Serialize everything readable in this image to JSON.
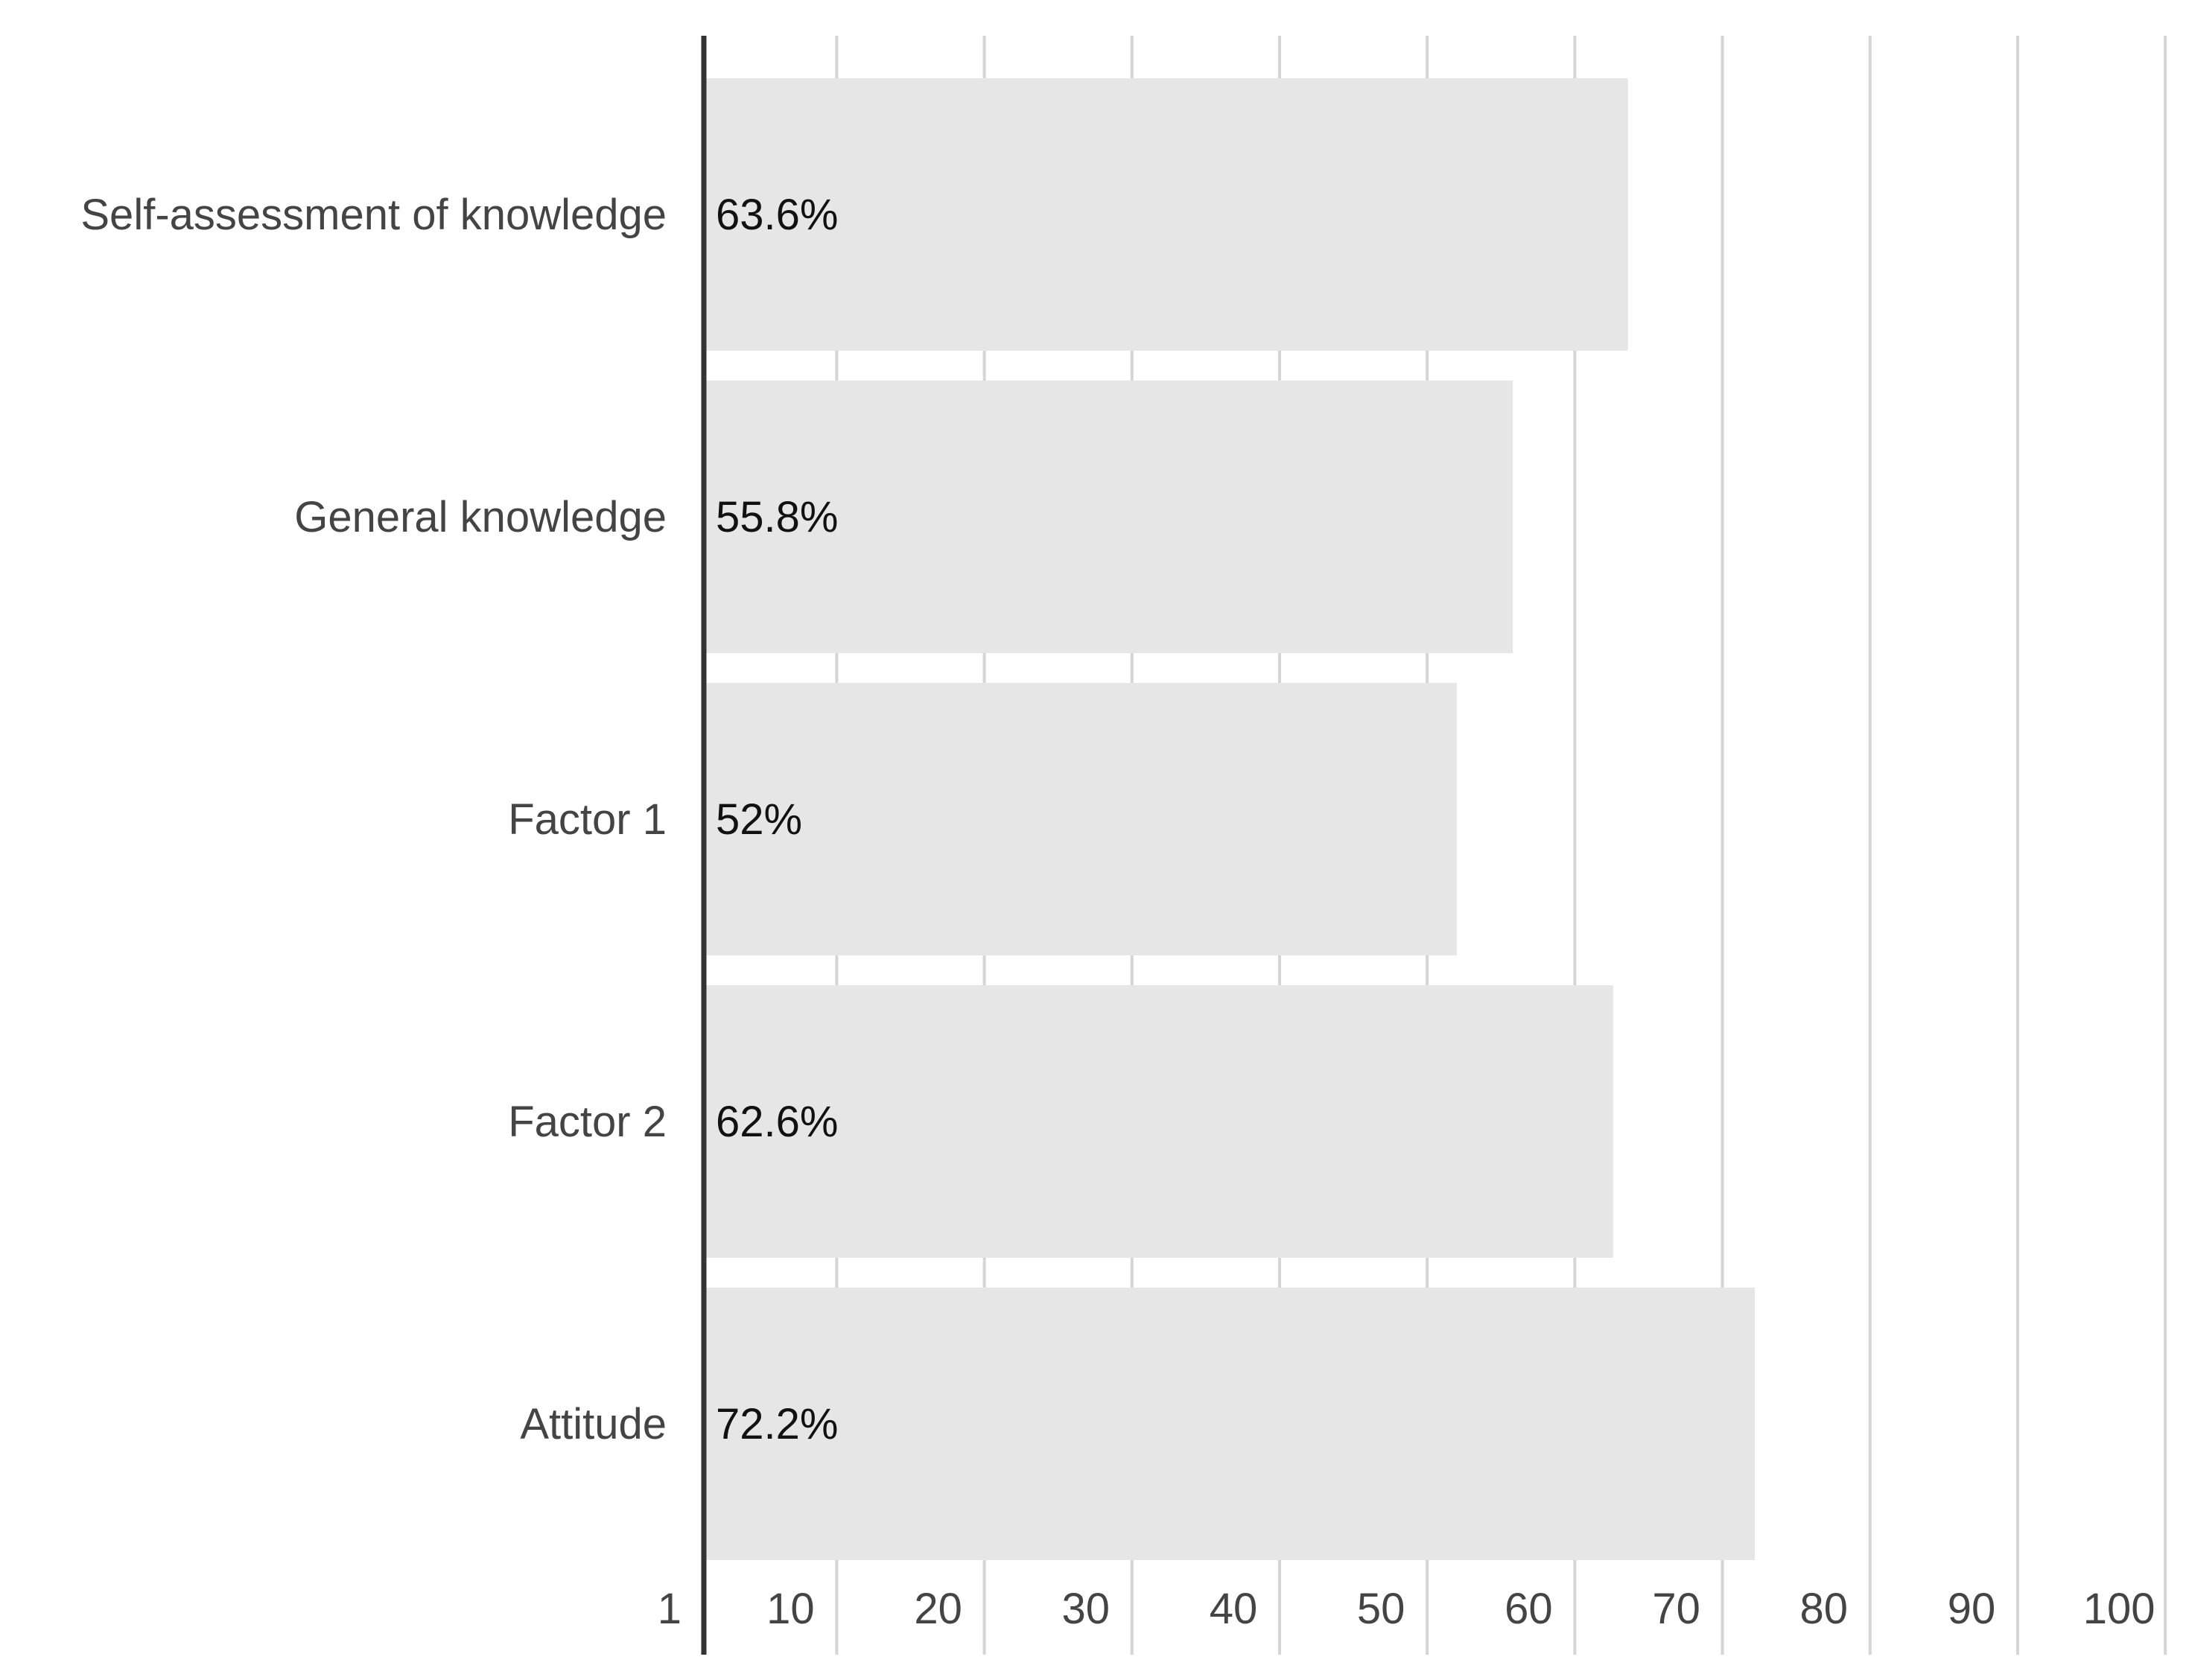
{
  "chart_data": {
    "type": "bar",
    "orientation": "horizontal",
    "categories": [
      "Self-assessment of knowledge",
      "General knowledge",
      "Factor 1",
      "Factor 2",
      "Attitude"
    ],
    "values": [
      63.6,
      55.8,
      52,
      62.6,
      72.2
    ],
    "value_labels": [
      "63.6%",
      "55.8%",
      "52%",
      "62.6%",
      "72.2%"
    ],
    "x_ticks": [
      1,
      10,
      20,
      30,
      40,
      50,
      60,
      70,
      80,
      90,
      100
    ],
    "x_tick_labels": [
      "1",
      "10",
      "20",
      "30",
      "40",
      "50",
      "60",
      "70",
      "80",
      "90",
      "100"
    ],
    "xlim": [
      1,
      100
    ],
    "grid": "vertical",
    "title": "",
    "xlabel": "",
    "ylabel": ""
  },
  "colors": {
    "bar": "#e6e6e6",
    "grid": "#d5d5d5",
    "axis": "#333333",
    "category_text": "#444444",
    "value_text": "#111111",
    "tick_text": "#444444"
  }
}
